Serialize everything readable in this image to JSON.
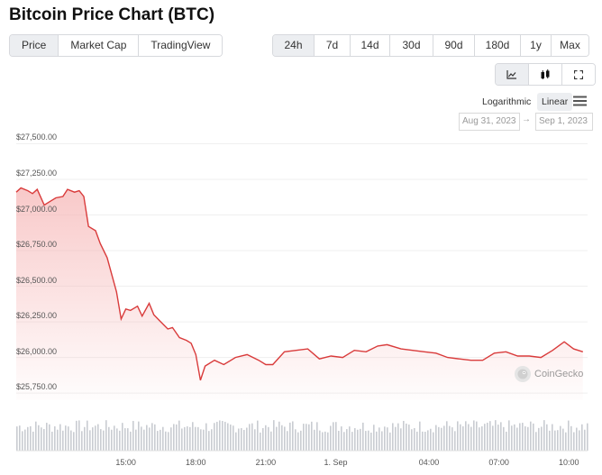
{
  "title": "Bitcoin Price Chart (BTC)",
  "tabs": [
    {
      "label": "Price",
      "active": true
    },
    {
      "label": "Market Cap",
      "active": false
    },
    {
      "label": "TradingView",
      "active": false
    }
  ],
  "ranges": [
    {
      "label": "24h",
      "active": true
    },
    {
      "label": "7d",
      "active": false
    },
    {
      "label": "14d",
      "active": false
    },
    {
      "label": "30d",
      "active": false
    },
    {
      "label": "90d",
      "active": false
    },
    {
      "label": "180d",
      "active": false
    },
    {
      "label": "1y",
      "active": false
    },
    {
      "label": "Max",
      "active": false
    }
  ],
  "chart_types": [
    {
      "icon": "line-chart-icon",
      "active": true
    },
    {
      "icon": "candlestick-icon",
      "active": false
    },
    {
      "icon": "fullscreen-icon",
      "active": false
    }
  ],
  "scale": {
    "logarithmic": "Logarithmic",
    "linear": "Linear",
    "selected": "Linear"
  },
  "menu_icon": "hamburger-menu-icon",
  "date_range": {
    "from": "Aug 31, 2023",
    "arrow": "→",
    "to": "Sep 1, 2023"
  },
  "watermark": {
    "icon": "coingecko-logo-icon",
    "text": "CoinGecko"
  },
  "colors": {
    "line": "#d93b3b",
    "area": "#f6b7b7",
    "volume": "#c9ccd1",
    "active_bg": "#eceef1"
  },
  "chart_data": {
    "type": "line",
    "grid": "horizontal",
    "y_ticks": [
      "$27,500.00",
      "$27,250.00",
      "$27,000.00",
      "$26,750.00",
      "$26,500.00",
      "$26,250.00",
      "$26,000.00",
      "$25,750.00"
    ],
    "y_tick_values": [
      27500,
      27250,
      27000,
      26750,
      26500,
      26250,
      26000,
      25750
    ],
    "ylim": [
      25700,
      27560
    ],
    "x_ticks": [
      {
        "label": "15:00",
        "t": 15
      },
      {
        "label": "18:00",
        "t": 18
      },
      {
        "label": "21:00",
        "t": 21
      },
      {
        "label": "1. Sep",
        "t": 24
      },
      {
        "label": "04:00",
        "t": 28
      },
      {
        "label": "07:00",
        "t": 31
      },
      {
        "label": "10:00",
        "t": 34
      }
    ],
    "xlim": [
      10.3,
      34.8
    ],
    "series": [
      {
        "values": [
          [
            10.3,
            27160
          ],
          [
            10.5,
            27190
          ],
          [
            10.8,
            27170
          ],
          [
            11.0,
            27150
          ],
          [
            11.2,
            27180
          ],
          [
            11.5,
            27070
          ],
          [
            11.8,
            27100
          ],
          [
            12.0,
            27120
          ],
          [
            12.3,
            27130
          ],
          [
            12.5,
            27180
          ],
          [
            12.8,
            27160
          ],
          [
            13.0,
            27170
          ],
          [
            13.2,
            27130
          ],
          [
            13.4,
            26920
          ],
          [
            13.7,
            26890
          ],
          [
            13.9,
            26800
          ],
          [
            14.2,
            26700
          ],
          [
            14.4,
            26580
          ],
          [
            14.6,
            26460
          ],
          [
            14.8,
            26270
          ],
          [
            15.0,
            26340
          ],
          [
            15.2,
            26330
          ],
          [
            15.5,
            26360
          ],
          [
            15.7,
            26290
          ],
          [
            16.0,
            26380
          ],
          [
            16.2,
            26300
          ],
          [
            16.5,
            26250
          ],
          [
            16.8,
            26200
          ],
          [
            17.0,
            26210
          ],
          [
            17.3,
            26140
          ],
          [
            17.6,
            26120
          ],
          [
            17.8,
            26100
          ],
          [
            18.0,
            26020
          ],
          [
            18.2,
            25840
          ],
          [
            18.4,
            25940
          ],
          [
            18.8,
            25980
          ],
          [
            19.2,
            25950
          ],
          [
            19.7,
            26000
          ],
          [
            20.2,
            26020
          ],
          [
            20.7,
            25980
          ],
          [
            21.0,
            25950
          ],
          [
            21.3,
            25950
          ],
          [
            21.8,
            26040
          ],
          [
            22.3,
            26050
          ],
          [
            22.8,
            26060
          ],
          [
            23.3,
            25990
          ],
          [
            23.8,
            26010
          ],
          [
            24.3,
            26000
          ],
          [
            24.8,
            26050
          ],
          [
            25.3,
            26040
          ],
          [
            25.8,
            26080
          ],
          [
            26.2,
            26090
          ],
          [
            26.8,
            26060
          ],
          [
            27.3,
            26050
          ],
          [
            27.8,
            26040
          ],
          [
            28.3,
            26030
          ],
          [
            28.8,
            26000
          ],
          [
            29.3,
            25990
          ],
          [
            29.8,
            25980
          ],
          [
            30.3,
            25980
          ],
          [
            30.8,
            26030
          ],
          [
            31.3,
            26040
          ],
          [
            31.8,
            26010
          ],
          [
            32.3,
            26010
          ],
          [
            32.8,
            26000
          ],
          [
            33.3,
            26050
          ],
          [
            33.8,
            26110
          ],
          [
            34.2,
            26060
          ],
          [
            34.6,
            26040
          ]
        ]
      }
    ]
  }
}
